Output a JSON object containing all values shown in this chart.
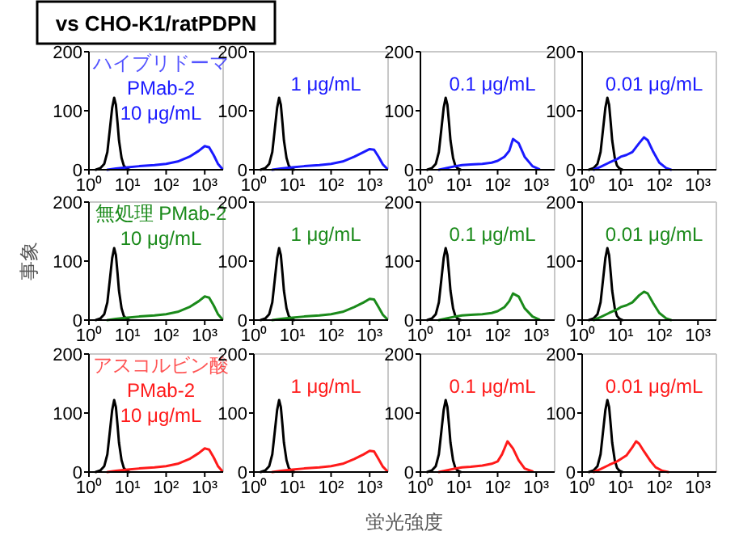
{
  "chart_data": [
    {
      "type": "line",
      "title": "vs CHO-K1/ratPDPN",
      "annotations": [
        "ハイブリドーマ",
        "PMab-2",
        "10 μg/mL"
      ],
      "log": "x",
      "xlim": [
        1,
        3000
      ],
      "ylim": [
        0,
        200
      ],
      "xticks": [
        {
          "value": 1,
          "label": "10⁰"
        },
        {
          "value": 10,
          "label": "10¹"
        },
        {
          "value": 100,
          "label": "10²"
        },
        {
          "value": 1000,
          "label": "10³"
        }
      ],
      "yticks": [
        0,
        100,
        200
      ],
      "grid": false,
      "series": [
        {
          "color": "#000000",
          "x": [
            1.5,
            2,
            2.5,
            3,
            3.5,
            4,
            4.5,
            5,
            5.5,
            6,
            7,
            8,
            9,
            10,
            11
          ],
          "values": [
            0,
            3,
            10,
            30,
            70,
            105,
            122,
            110,
            80,
            50,
            20,
            7,
            3,
            1,
            0
          ]
        },
        {
          "color": "#1a1aff",
          "x": [
            3,
            5,
            10,
            20,
            50,
            100,
            200,
            400,
            700,
            1000,
            1300,
            1700,
            2200,
            2800
          ],
          "values": [
            0,
            2,
            4,
            6,
            8,
            10,
            14,
            22,
            32,
            40,
            38,
            25,
            10,
            2
          ]
        }
      ]
    },
    {
      "type": "line",
      "annotations": [
        "1 μg/mL"
      ],
      "log": "x",
      "xlim": [
        1,
        3000
      ],
      "ylim": [
        0,
        200
      ],
      "xticks": [
        {
          "value": 1,
          "label": "10⁰"
        },
        {
          "value": 10,
          "label": "10¹"
        },
        {
          "value": 100,
          "label": "10²"
        },
        {
          "value": 1000,
          "label": "10³"
        }
      ],
      "yticks": [
        0,
        100,
        200
      ],
      "grid": false,
      "series": [
        {
          "color": "#000000",
          "x": [
            1.5,
            2,
            2.5,
            3,
            3.5,
            4,
            4.5,
            5,
            5.5,
            6,
            7,
            8,
            9,
            10,
            11
          ],
          "values": [
            0,
            3,
            10,
            30,
            70,
            105,
            122,
            110,
            80,
            50,
            20,
            7,
            3,
            1,
            0
          ]
        },
        {
          "color": "#1a1aff",
          "x": [
            3,
            5,
            10,
            20,
            50,
            100,
            200,
            400,
            700,
            1000,
            1300,
            1700,
            2200,
            2800
          ],
          "values": [
            0,
            2,
            4,
            6,
            8,
            10,
            14,
            22,
            30,
            35,
            34,
            22,
            9,
            2
          ]
        }
      ]
    },
    {
      "type": "line",
      "annotations": [
        "0.1 μg/mL"
      ],
      "log": "x",
      "xlim": [
        1,
        3000
      ],
      "ylim": [
        0,
        200
      ],
      "xticks": [
        {
          "value": 1,
          "label": "10⁰"
        },
        {
          "value": 10,
          "label": "10¹"
        },
        {
          "value": 100,
          "label": "10²"
        },
        {
          "value": 1000,
          "label": "10³"
        }
      ],
      "yticks": [
        0,
        100,
        200
      ],
      "grid": false,
      "series": [
        {
          "color": "#000000",
          "x": [
            1.5,
            2,
            2.5,
            3,
            3.5,
            4,
            4.5,
            5,
            5.5,
            6,
            7,
            8,
            9,
            10,
            11
          ],
          "values": [
            0,
            3,
            10,
            30,
            70,
            105,
            122,
            110,
            80,
            50,
            20,
            7,
            3,
            1,
            0
          ]
        },
        {
          "color": "#1a1aff",
          "x": [
            3,
            5,
            8,
            12,
            20,
            40,
            70,
            100,
            150,
            200,
            250,
            350,
            500,
            800,
            1200
          ],
          "values": [
            0,
            3,
            6,
            8,
            9,
            10,
            12,
            15,
            22,
            32,
            52,
            45,
            22,
            6,
            1
          ]
        }
      ]
    },
    {
      "type": "line",
      "annotations": [
        "0.01 μg/mL"
      ],
      "log": "x",
      "xlim": [
        1,
        3000
      ],
      "ylim": [
        0,
        200
      ],
      "xticks": [
        {
          "value": 1,
          "label": "10⁰"
        },
        {
          "value": 10,
          "label": "10¹"
        },
        {
          "value": 100,
          "label": "10²"
        },
        {
          "value": 1000,
          "label": "10³"
        }
      ],
      "yticks": [
        0,
        100,
        200
      ],
      "grid": false,
      "series": [
        {
          "color": "#000000",
          "x": [
            1.5,
            2,
            2.5,
            3,
            3.5,
            4,
            4.5,
            5,
            5.5,
            6,
            7,
            8,
            9,
            10,
            11
          ],
          "values": [
            0,
            3,
            10,
            30,
            70,
            105,
            122,
            110,
            80,
            50,
            20,
            7,
            3,
            1,
            0
          ]
        },
        {
          "color": "#1a1aff",
          "x": [
            2,
            3,
            5,
            8,
            10,
            14,
            20,
            30,
            40,
            50,
            70,
            100,
            150,
            200
          ],
          "values": [
            0,
            5,
            12,
            18,
            22,
            25,
            30,
            45,
            55,
            50,
            30,
            12,
            3,
            0
          ]
        }
      ]
    },
    {
      "type": "line",
      "ylabel": "事象",
      "annotations": [
        "無処理 PMab-2",
        "10 μg/mL"
      ],
      "log": "x",
      "xlim": [
        1,
        3000
      ],
      "ylim": [
        0,
        200
      ],
      "xticks": [
        {
          "value": 1,
          "label": "10⁰"
        },
        {
          "value": 10,
          "label": "10¹"
        },
        {
          "value": 100,
          "label": "10²"
        },
        {
          "value": 1000,
          "label": "10³"
        }
      ],
      "yticks": [
        0,
        100,
        200
      ],
      "grid": false,
      "series": [
        {
          "color": "#000000",
          "x": [
            1.5,
            2,
            2.5,
            3,
            3.5,
            4,
            4.5,
            5,
            5.5,
            6,
            7,
            8,
            9,
            10,
            11
          ],
          "values": [
            0,
            3,
            10,
            30,
            70,
            105,
            122,
            110,
            80,
            50,
            20,
            7,
            3,
            1,
            0
          ]
        },
        {
          "color": "#1a8a1a",
          "x": [
            3,
            5,
            10,
            20,
            50,
            100,
            200,
            400,
            700,
            1000,
            1300,
            1700,
            2200,
            2800
          ],
          "values": [
            0,
            2,
            4,
            6,
            8,
            10,
            14,
            22,
            32,
            40,
            38,
            25,
            10,
            2
          ]
        }
      ]
    },
    {
      "type": "line",
      "annotations": [
        "1 μg/mL"
      ],
      "log": "x",
      "xlim": [
        1,
        3000
      ],
      "ylim": [
        0,
        200
      ],
      "xticks": [
        {
          "value": 1,
          "label": "10⁰"
        },
        {
          "value": 10,
          "label": "10¹"
        },
        {
          "value": 100,
          "label": "10²"
        },
        {
          "value": 1000,
          "label": "10³"
        }
      ],
      "yticks": [
        0,
        100,
        200
      ],
      "grid": false,
      "series": [
        {
          "color": "#000000",
          "x": [
            1.5,
            2,
            2.5,
            3,
            3.5,
            4,
            4.5,
            5,
            5.5,
            6,
            7,
            8,
            9,
            10,
            11
          ],
          "values": [
            0,
            3,
            10,
            30,
            70,
            105,
            122,
            110,
            80,
            50,
            20,
            7,
            3,
            1,
            0
          ]
        },
        {
          "color": "#1a8a1a",
          "x": [
            3,
            5,
            10,
            20,
            50,
            100,
            200,
            400,
            700,
            1000,
            1300,
            1700,
            2200,
            2800
          ],
          "values": [
            0,
            2,
            4,
            6,
            8,
            10,
            14,
            22,
            30,
            36,
            35,
            22,
            9,
            2
          ]
        }
      ]
    },
    {
      "type": "line",
      "annotations": [
        "0.1 μg/mL"
      ],
      "log": "x",
      "xlim": [
        1,
        3000
      ],
      "ylim": [
        0,
        200
      ],
      "xticks": [
        {
          "value": 1,
          "label": "10⁰"
        },
        {
          "value": 10,
          "label": "10¹"
        },
        {
          "value": 100,
          "label": "10²"
        },
        {
          "value": 1000,
          "label": "10³"
        }
      ],
      "yticks": [
        0,
        100,
        200
      ],
      "grid": false,
      "series": [
        {
          "color": "#000000",
          "x": [
            1.5,
            2,
            2.5,
            3,
            3.5,
            4,
            4.5,
            5,
            5.5,
            6,
            7,
            8,
            9,
            10,
            11
          ],
          "values": [
            0,
            3,
            10,
            30,
            70,
            105,
            122,
            110,
            80,
            50,
            20,
            7,
            3,
            1,
            0
          ]
        },
        {
          "color": "#1a8a1a",
          "x": [
            3,
            5,
            8,
            12,
            20,
            40,
            70,
            100,
            150,
            200,
            250,
            350,
            500,
            800,
            1200
          ],
          "values": [
            0,
            3,
            6,
            8,
            9,
            10,
            12,
            15,
            22,
            32,
            45,
            40,
            20,
            6,
            1
          ]
        }
      ]
    },
    {
      "type": "line",
      "annotations": [
        "0.01 μg/mL"
      ],
      "log": "x",
      "xlim": [
        1,
        3000
      ],
      "ylim": [
        0,
        200
      ],
      "xticks": [
        {
          "value": 1,
          "label": "10⁰"
        },
        {
          "value": 10,
          "label": "10¹"
        },
        {
          "value": 100,
          "label": "10²"
        },
        {
          "value": 1000,
          "label": "10³"
        }
      ],
      "yticks": [
        0,
        100,
        200
      ],
      "grid": false,
      "series": [
        {
          "color": "#000000",
          "x": [
            1.5,
            2,
            2.5,
            3,
            3.5,
            4,
            4.5,
            5,
            5.5,
            6,
            7,
            8,
            9,
            10,
            11
          ],
          "values": [
            0,
            3,
            10,
            30,
            70,
            105,
            122,
            110,
            80,
            50,
            20,
            7,
            3,
            1,
            0
          ]
        },
        {
          "color": "#1a8a1a",
          "x": [
            2,
            3,
            5,
            8,
            10,
            14,
            20,
            30,
            40,
            50,
            70,
            100,
            150,
            200
          ],
          "values": [
            0,
            5,
            12,
            18,
            22,
            25,
            30,
            42,
            48,
            45,
            28,
            12,
            3,
            0
          ]
        }
      ]
    },
    {
      "type": "line",
      "annotations": [
        "アスコルビン酸",
        "PMab-2",
        "10 μg/mL"
      ],
      "log": "x",
      "xlim": [
        1,
        3000
      ],
      "ylim": [
        0,
        200
      ],
      "xticks": [
        {
          "value": 1,
          "label": "10⁰"
        },
        {
          "value": 10,
          "label": "10¹"
        },
        {
          "value": 100,
          "label": "10²"
        },
        {
          "value": 1000,
          "label": "10³"
        }
      ],
      "yticks": [
        0,
        100,
        200
      ],
      "grid": false,
      "series": [
        {
          "color": "#000000",
          "x": [
            1.5,
            2,
            2.5,
            3,
            3.5,
            4,
            4.5,
            5,
            5.5,
            6,
            7,
            8,
            9,
            10,
            11
          ],
          "values": [
            0,
            3,
            10,
            30,
            70,
            105,
            122,
            110,
            80,
            50,
            20,
            7,
            3,
            1,
            0
          ]
        },
        {
          "color": "#ff1a1a",
          "x": [
            3,
            5,
            10,
            20,
            50,
            100,
            200,
            400,
            700,
            1000,
            1300,
            1700,
            2200,
            2800
          ],
          "values": [
            0,
            2,
            4,
            6,
            8,
            10,
            14,
            22,
            32,
            40,
            38,
            25,
            10,
            2
          ]
        }
      ]
    },
    {
      "type": "line",
      "annotations": [
        "1 μg/mL"
      ],
      "log": "x",
      "xlim": [
        1,
        3000
      ],
      "ylim": [
        0,
        200
      ],
      "xticks": [
        {
          "value": 1,
          "label": "10⁰"
        },
        {
          "value": 10,
          "label": "10¹"
        },
        {
          "value": 100,
          "label": "10²"
        },
        {
          "value": 1000,
          "label": "10³"
        }
      ],
      "yticks": [
        0,
        100,
        200
      ],
      "grid": false,
      "series": [
        {
          "color": "#000000",
          "x": [
            1.5,
            2,
            2.5,
            3,
            3.5,
            4,
            4.5,
            5,
            5.5,
            6,
            7,
            8,
            9,
            10,
            11
          ],
          "values": [
            0,
            3,
            10,
            30,
            70,
            105,
            122,
            110,
            80,
            50,
            20,
            7,
            3,
            1,
            0
          ]
        },
        {
          "color": "#ff1a1a",
          "x": [
            3,
            5,
            10,
            20,
            50,
            100,
            200,
            400,
            700,
            1000,
            1300,
            1700,
            2200,
            2800
          ],
          "values": [
            0,
            2,
            4,
            6,
            8,
            10,
            14,
            22,
            30,
            36,
            35,
            22,
            9,
            2
          ]
        }
      ]
    },
    {
      "type": "line",
      "xlabel": "蛍光強度",
      "annotations": [
        "0.1 μg/mL"
      ],
      "log": "x",
      "xlim": [
        1,
        3000
      ],
      "ylim": [
        0,
        200
      ],
      "xticks": [
        {
          "value": 1,
          "label": "10⁰"
        },
        {
          "value": 10,
          "label": "10¹"
        },
        {
          "value": 100,
          "label": "10²"
        },
        {
          "value": 1000,
          "label": "10³"
        }
      ],
      "yticks": [
        0,
        100,
        200
      ],
      "grid": false,
      "series": [
        {
          "color": "#000000",
          "x": [
            1.5,
            2,
            2.5,
            3,
            3.5,
            4,
            4.5,
            5,
            5.5,
            6,
            7,
            8,
            9,
            10,
            11
          ],
          "values": [
            0,
            3,
            10,
            30,
            70,
            105,
            122,
            110,
            80,
            50,
            20,
            7,
            3,
            1,
            0
          ]
        },
        {
          "color": "#ff1a1a",
          "x": [
            3,
            5,
            8,
            12,
            20,
            40,
            70,
            100,
            130,
            180,
            250,
            350,
            500,
            800
          ],
          "values": [
            0,
            3,
            6,
            8,
            9,
            11,
            14,
            18,
            30,
            52,
            40,
            20,
            6,
            1
          ]
        }
      ]
    },
    {
      "type": "line",
      "annotations": [
        "0.01 μg/mL"
      ],
      "log": "x",
      "xlim": [
        1,
        3000
      ],
      "ylim": [
        0,
        200
      ],
      "xticks": [
        {
          "value": 1,
          "label": "10⁰"
        },
        {
          "value": 10,
          "label": "10¹"
        },
        {
          "value": 100,
          "label": "10²"
        },
        {
          "value": 1000,
          "label": "10³"
        }
      ],
      "yticks": [
        0,
        100,
        200
      ],
      "grid": false,
      "series": [
        {
          "color": "#000000",
          "x": [
            1.5,
            2,
            2.5,
            3,
            3.5,
            4,
            4.5,
            5,
            5.5,
            6,
            7,
            8,
            9,
            10,
            11
          ],
          "values": [
            0,
            3,
            10,
            30,
            70,
            105,
            122,
            110,
            80,
            50,
            20,
            7,
            3,
            1,
            0
          ]
        },
        {
          "color": "#ff1a1a",
          "x": [
            2,
            3,
            5,
            8,
            10,
            14,
            20,
            25,
            30,
            40,
            60,
            80,
            120,
            170
          ],
          "values": [
            0,
            5,
            12,
            18,
            22,
            28,
            42,
            52,
            48,
            35,
            18,
            8,
            2,
            0
          ]
        }
      ]
    }
  ]
}
